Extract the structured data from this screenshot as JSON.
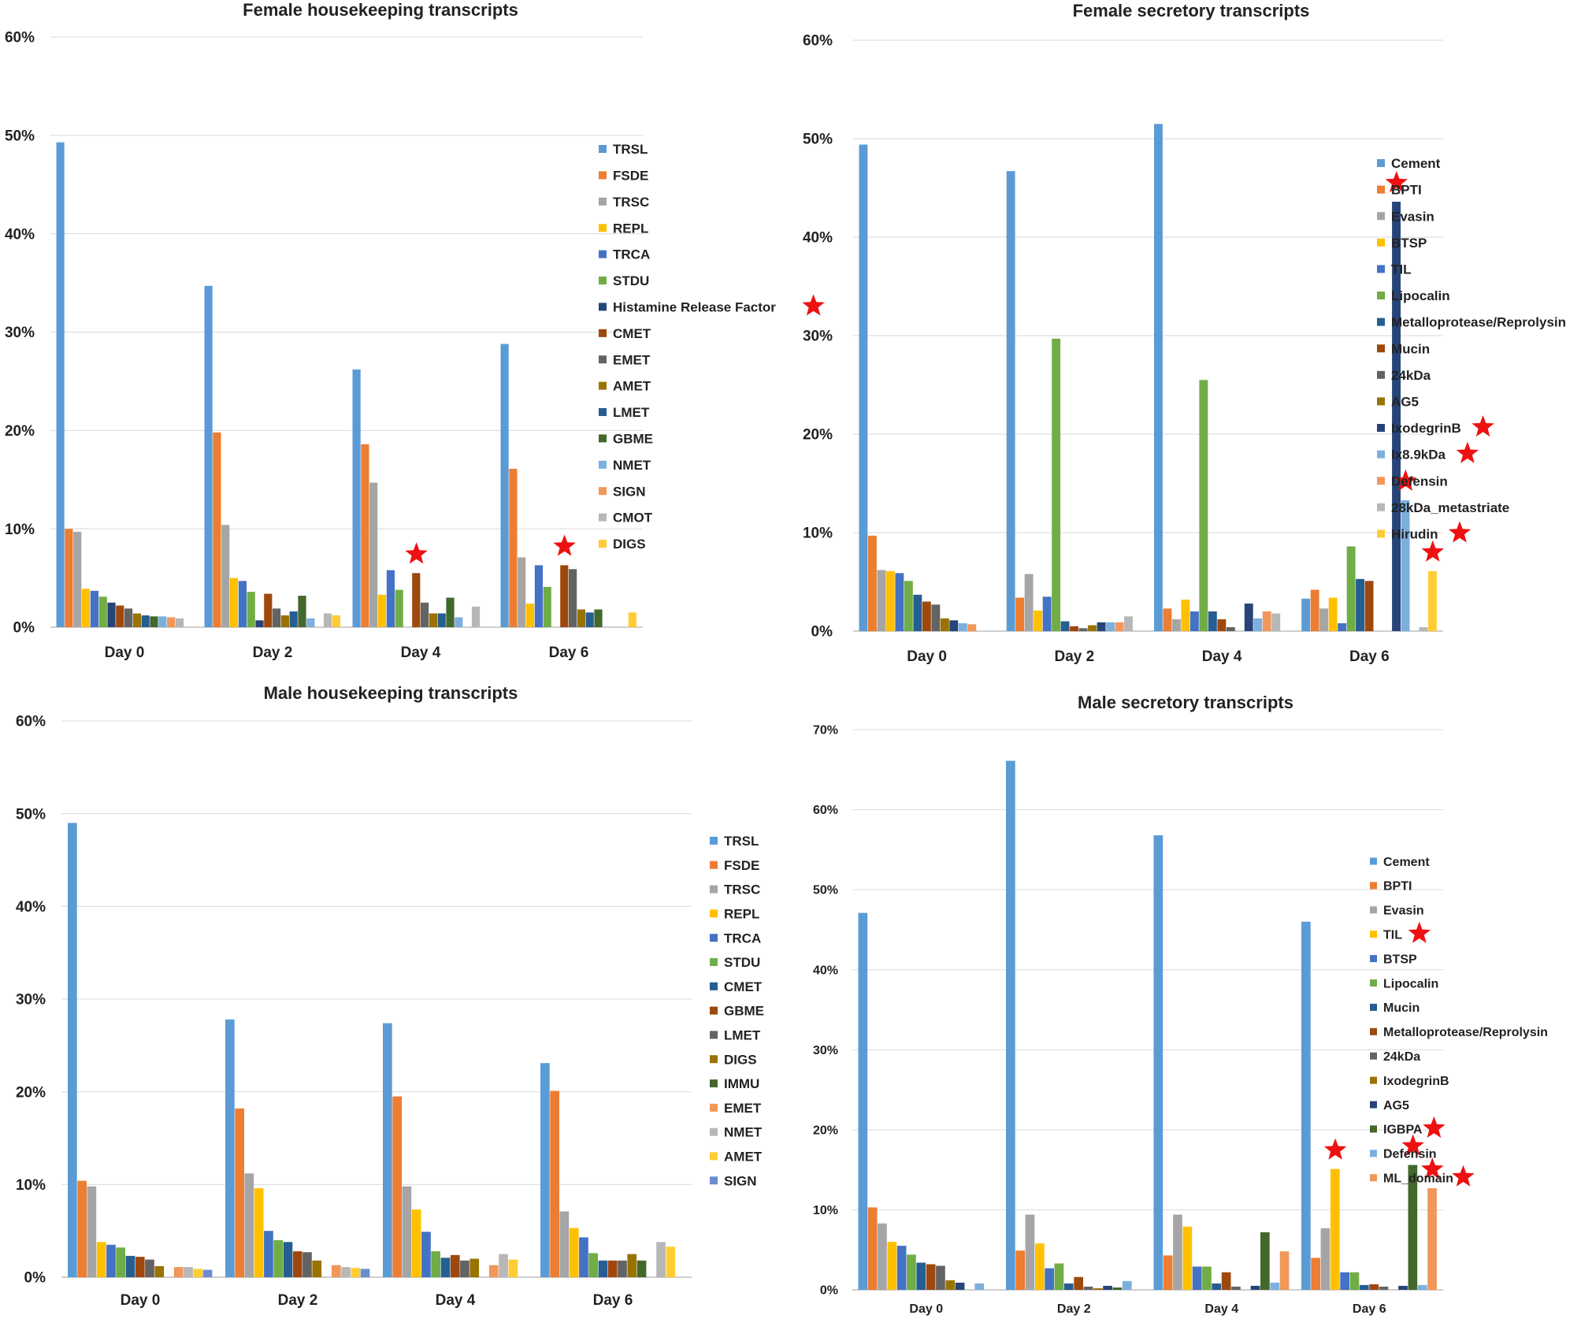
{
  "chart_data": [
    {
      "id": "female-housekeeping",
      "type": "bar",
      "title": "Female housekeeping transcripts",
      "categories": [
        "Day 0",
        "Day 2",
        "Day 4",
        "Day 6"
      ],
      "y_ticks": [
        "0%",
        "10%",
        "20%",
        "30%",
        "40%",
        "50%",
        "60%"
      ],
      "ylim": [
        0,
        60
      ],
      "ylabel": "",
      "legend_position": "right",
      "series": [
        {
          "name": "TRSL",
          "color": "#5B9BD5",
          "values": [
            49.3,
            34.7,
            26.2,
            28.8
          ]
        },
        {
          "name": "FSDE",
          "color": "#ED7D31",
          "values": [
            10.0,
            19.8,
            18.6,
            16.1
          ]
        },
        {
          "name": "TRSC",
          "color": "#A5A5A5",
          "values": [
            9.7,
            10.4,
            14.7,
            7.1
          ]
        },
        {
          "name": "REPL",
          "color": "#FFC000",
          "values": [
            3.9,
            5.0,
            3.3,
            2.4
          ]
        },
        {
          "name": "TRCA",
          "color": "#4472C4",
          "values": [
            3.7,
            4.7,
            5.8,
            6.3
          ]
        },
        {
          "name": "STDU",
          "color": "#70AD47",
          "values": [
            3.1,
            3.6,
            3.8,
            4.1
          ]
        },
        {
          "name": "Histamine Release Factor",
          "color": "#264478",
          "values": [
            2.5,
            0.7,
            0.0,
            0.0
          ]
        },
        {
          "name": "CMET",
          "color": "#9E480E",
          "values": [
            2.2,
            3.4,
            5.5,
            6.3
          ]
        },
        {
          "name": "EMET",
          "color": "#636363",
          "values": [
            1.9,
            1.9,
            2.5,
            5.9
          ]
        },
        {
          "name": "AMET",
          "color": "#997300",
          "values": [
            1.4,
            1.2,
            1.4,
            1.8
          ]
        },
        {
          "name": "LMET",
          "color": "#255E91",
          "values": [
            1.2,
            1.6,
            1.4,
            1.5
          ]
        },
        {
          "name": "GBME",
          "color": "#43682B",
          "values": [
            1.1,
            3.2,
            3.0,
            1.8
          ]
        },
        {
          "name": "NMET",
          "color": "#7CAFDD",
          "values": [
            1.1,
            0.9,
            1.0,
            0.0
          ]
        },
        {
          "name": "SIGN",
          "color": "#F1975A",
          "values": [
            1.0,
            0.0,
            0.0,
            0.0
          ]
        },
        {
          "name": "CMOT",
          "color": "#B7B7B7",
          "values": [
            0.9,
            1.4,
            2.1,
            0.0
          ]
        },
        {
          "name": "DIGS",
          "color": "#FFCD33",
          "values": [
            0.0,
            1.2,
            0.0,
            1.5
          ]
        }
      ],
      "starred_legend": [
        "Histamine Release Factor"
      ],
      "starred_bars": [
        {
          "series": "CMET",
          "category": "Day 4"
        },
        {
          "series": "CMET",
          "category": "Day 6"
        }
      ]
    },
    {
      "id": "female-secretory",
      "type": "bar",
      "title": "Female secretory transcripts",
      "categories": [
        "Day 0",
        "Day 2",
        "Day 4",
        "Day 6"
      ],
      "y_ticks": [
        "0%",
        "10%",
        "20%",
        "30%",
        "40%",
        "50%",
        "60%"
      ],
      "ylim": [
        0,
        60
      ],
      "ylabel": "",
      "legend_position": "right",
      "series": [
        {
          "name": "Cement",
          "color": "#5B9BD5",
          "values": [
            49.4,
            46.7,
            51.5,
            3.3
          ]
        },
        {
          "name": "BPTI",
          "color": "#ED7D31",
          "values": [
            9.7,
            3.4,
            2.3,
            4.2
          ]
        },
        {
          "name": "Evasin",
          "color": "#A5A5A5",
          "values": [
            6.2,
            5.8,
            1.2,
            2.3
          ]
        },
        {
          "name": "BTSP",
          "color": "#FFC000",
          "values": [
            6.1,
            2.1,
            3.2,
            3.4
          ]
        },
        {
          "name": "TIL",
          "color": "#4472C4",
          "values": [
            5.9,
            3.5,
            2.0,
            0.8
          ]
        },
        {
          "name": "Lipocalin",
          "color": "#70AD47",
          "values": [
            5.1,
            29.7,
            25.5,
            8.6
          ]
        },
        {
          "name": "Metalloprotease/Reprolysin",
          "color": "#255E91",
          "values": [
            3.7,
            1.0,
            2.0,
            5.3
          ]
        },
        {
          "name": "Mucin",
          "color": "#9E480E",
          "values": [
            3.0,
            0.5,
            1.2,
            5.1
          ]
        },
        {
          "name": "24kDa",
          "color": "#636363",
          "values": [
            2.7,
            0.3,
            0.4,
            0.0
          ]
        },
        {
          "name": "AG5",
          "color": "#997300",
          "values": [
            1.3,
            0.6,
            0.0,
            0.0
          ]
        },
        {
          "name": "IxodegrinB",
          "color": "#264478",
          "values": [
            1.1,
            0.9,
            2.8,
            43.6
          ]
        },
        {
          "name": "Ix8.9kDa",
          "color": "#7CAFDD",
          "values": [
            0.8,
            0.9,
            1.3,
            13.3
          ]
        },
        {
          "name": "Defensin",
          "color": "#F1975A",
          "values": [
            0.7,
            0.9,
            2.0,
            0.0
          ]
        },
        {
          "name": "28kDa_metastriate",
          "color": "#B7B7B7",
          "values": [
            0.0,
            1.5,
            1.8,
            0.4
          ]
        },
        {
          "name": "Hirudin",
          "color": "#FFCD33",
          "values": [
            0.0,
            0.0,
            0.0,
            6.1
          ]
        }
      ],
      "starred_legend": [
        "IxodegrinB",
        "Ix8.9kDa",
        "Hirudin"
      ],
      "starred_bars": [
        {
          "series": "IxodegrinB",
          "category": "Day 6"
        },
        {
          "series": "Ix8.9kDa",
          "category": "Day 6"
        },
        {
          "series": "Hirudin",
          "category": "Day 6"
        }
      ]
    },
    {
      "id": "male-housekeeping",
      "type": "bar",
      "title": "Male housekeeping transcripts",
      "categories": [
        "Day 0",
        "Day 2",
        "Day 4",
        "Day 6"
      ],
      "y_ticks": [
        "0%",
        "10%",
        "20%",
        "30%",
        "40%",
        "50%",
        "60%"
      ],
      "ylim": [
        0,
        60
      ],
      "ylabel": "",
      "legend_position": "right",
      "series": [
        {
          "name": "TRSL",
          "color": "#5B9BD5",
          "values": [
            49.0,
            27.8,
            27.4,
            23.1
          ]
        },
        {
          "name": "FSDE",
          "color": "#ED7D31",
          "values": [
            10.4,
            18.2,
            19.5,
            20.1
          ]
        },
        {
          "name": "TRSC",
          "color": "#A5A5A5",
          "values": [
            9.8,
            11.2,
            9.8,
            7.1
          ]
        },
        {
          "name": "REPL",
          "color": "#FFC000",
          "values": [
            3.8,
            9.6,
            7.3,
            5.3
          ]
        },
        {
          "name": "TRCA",
          "color": "#4472C4",
          "values": [
            3.5,
            5.0,
            4.9,
            4.3
          ]
        },
        {
          "name": "STDU",
          "color": "#70AD47",
          "values": [
            3.2,
            4.0,
            2.8,
            2.6
          ]
        },
        {
          "name": "CMET",
          "color": "#255E91",
          "values": [
            2.3,
            3.8,
            2.1,
            1.8
          ]
        },
        {
          "name": "GBME",
          "color": "#9E480E",
          "values": [
            2.2,
            2.8,
            2.4,
            1.8
          ]
        },
        {
          "name": "LMET",
          "color": "#636363",
          "values": [
            1.9,
            2.7,
            1.8,
            1.8
          ]
        },
        {
          "name": "DIGS",
          "color": "#997300",
          "values": [
            1.2,
            1.8,
            2.0,
            2.5
          ]
        },
        {
          "name": "IMMU",
          "color": "#43682B",
          "values": [
            0.0,
            0.0,
            0.0,
            1.8
          ]
        },
        {
          "name": "EMET",
          "color": "#F1975A",
          "values": [
            1.1,
            1.3,
            1.3,
            0.0
          ]
        },
        {
          "name": "NMET",
          "color": "#B7B7B7",
          "values": [
            1.1,
            1.1,
            2.5,
            3.8
          ]
        },
        {
          "name": "AMET",
          "color": "#FFCD33",
          "values": [
            0.9,
            1.0,
            1.9,
            3.3
          ]
        },
        {
          "name": "SIGN",
          "color": "#698ED0",
          "values": [
            0.8,
            0.9,
            0.0,
            0.0
          ]
        }
      ],
      "starred_legend": [],
      "starred_bars": []
    },
    {
      "id": "male-secretory",
      "type": "bar",
      "title": "Male secretory transcripts",
      "categories": [
        "Day 0",
        "Day 2",
        "Day 4",
        "Day 6"
      ],
      "y_ticks": [
        "0%",
        "10%",
        "20%",
        "30%",
        "40%",
        "50%",
        "60%",
        "70%"
      ],
      "ylim": [
        0,
        70
      ],
      "ylabel": "",
      "legend_position": "right",
      "series": [
        {
          "name": "Cement",
          "color": "#5B9BD5",
          "values": [
            47.1,
            66.1,
            56.8,
            46.0
          ]
        },
        {
          "name": "BPTI",
          "color": "#ED7D31",
          "values": [
            10.3,
            4.9,
            4.3,
            4.0
          ]
        },
        {
          "name": "Evasin",
          "color": "#A5A5A5",
          "values": [
            8.3,
            9.4,
            9.4,
            7.7
          ]
        },
        {
          "name": "TIL",
          "color": "#FFC000",
          "values": [
            6.0,
            5.8,
            7.9,
            15.1
          ]
        },
        {
          "name": "BTSP",
          "color": "#4472C4",
          "values": [
            5.5,
            2.7,
            2.9,
            2.2
          ]
        },
        {
          "name": "Lipocalin",
          "color": "#70AD47",
          "values": [
            4.4,
            3.3,
            2.9,
            2.2
          ]
        },
        {
          "name": "Mucin",
          "color": "#255E91",
          "values": [
            3.4,
            0.8,
            0.8,
            0.6
          ]
        },
        {
          "name": "Metalloprotease/Reprolysin",
          "color": "#9E480E",
          "values": [
            3.2,
            1.6,
            2.2,
            0.7
          ]
        },
        {
          "name": "24kDa",
          "color": "#636363",
          "values": [
            3.0,
            0.4,
            0.4,
            0.4
          ]
        },
        {
          "name": "IxodegrinB",
          "color": "#997300",
          "values": [
            1.2,
            0.2,
            0.0,
            0.0
          ]
        },
        {
          "name": "AG5",
          "color": "#264478",
          "values": [
            0.9,
            0.5,
            0.5,
            0.5
          ]
        },
        {
          "name": "IGBPA",
          "color": "#43682B",
          "values": [
            0.0,
            0.3,
            7.2,
            15.6
          ]
        },
        {
          "name": "Defensin",
          "color": "#7CAFDD",
          "values": [
            0.8,
            1.1,
            0.9,
            0.6
          ]
        },
        {
          "name": "ML_domain",
          "color": "#F1975A",
          "values": [
            0.0,
            0.0,
            4.8,
            12.7
          ]
        }
      ],
      "starred_legend": [
        "TIL",
        "IGBPA",
        "ML_domain"
      ],
      "starred_bars": [
        {
          "series": "TIL",
          "category": "Day 6"
        },
        {
          "series": "IGBPA",
          "category": "Day 6"
        },
        {
          "series": "ML_domain",
          "category": "Day 6"
        }
      ]
    }
  ]
}
